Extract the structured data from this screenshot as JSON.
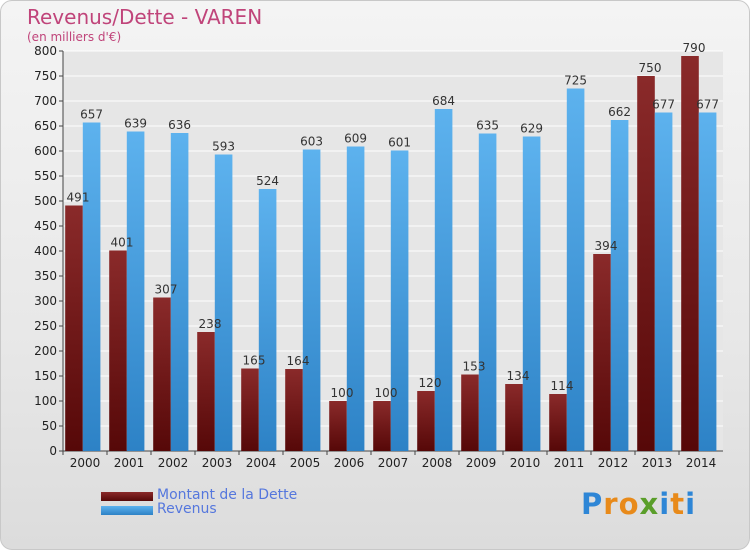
{
  "header": {
    "title": "Revenus/Dette - VAREN",
    "subtitle": "(en milliers d'€)"
  },
  "legend": {
    "debt_label": "Montant de la Dette",
    "revenue_label": "Revenus"
  },
  "logo": {
    "letters": [
      "P",
      "r",
      "o",
      "x",
      "i",
      "t",
      "i"
    ],
    "colors": [
      "#2e86d6",
      "#e88a1a",
      "#e88a1a",
      "#5a9e2a",
      "#2e86d6",
      "#e88a1a",
      "#2e86d6"
    ]
  },
  "colors": {
    "debt": "#7a1c1c",
    "revenue": "#4aa3e6",
    "title": "#c0447a"
  },
  "chart_data": {
    "type": "bar",
    "categories": [
      "2000",
      "2001",
      "2002",
      "2003",
      "2004",
      "2005",
      "2006",
      "2007",
      "2008",
      "2009",
      "2010",
      "2011",
      "2012",
      "2013",
      "2014"
    ],
    "series": [
      {
        "name": "Montant de la Dette",
        "values": [
          491,
          401,
          307,
          238,
          165,
          164,
          100,
          100,
          120,
          153,
          134,
          114,
          394,
          750,
          790
        ]
      },
      {
        "name": "Revenus",
        "values": [
          657,
          639,
          636,
          593,
          524,
          603,
          609,
          601,
          684,
          635,
          629,
          725,
          662,
          677,
          677
        ]
      }
    ],
    "data_labels": [
      [
        "491",
        "401",
        "307",
        "238",
        "165",
        "164",
        "100",
        "100",
        "120",
        "153",
        "134",
        "114",
        "394",
        "750",
        "790"
      ],
      [
        "657",
        "639",
        "636",
        "593",
        "524",
        "603",
        "609",
        "601",
        "684",
        "635",
        "629",
        "725",
        "662",
        "677",
        "677"
      ]
    ],
    "yticks": [
      "0",
      "50",
      "100",
      "150",
      "200",
      "250",
      "300",
      "350",
      "400",
      "450",
      "500",
      "550",
      "600",
      "650",
      "700",
      "750",
      "800"
    ],
    "ylim": [
      0,
      800
    ],
    "grid": true,
    "legend_position": "bottom-left"
  }
}
